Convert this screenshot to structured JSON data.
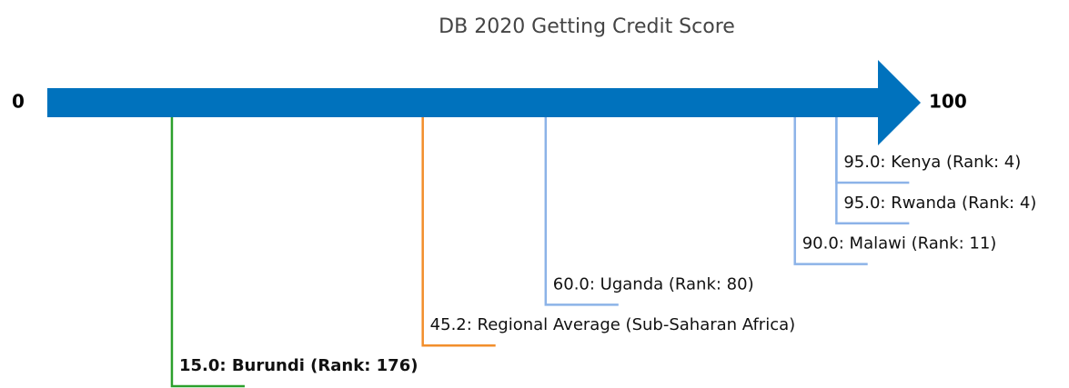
{
  "chart_data": {
    "type": "numberline",
    "title": "DB 2020 Getting Credit Score",
    "xlim": [
      0,
      100
    ],
    "xticks": [
      0,
      100
    ],
    "axis_color": "#0072bd",
    "points": [
      {
        "label": "15.0: Burundi (Rank: 176)",
        "value": 15,
        "color": "#2ca02c",
        "bold": true
      },
      {
        "label": "45.2: Regional Average (Sub-Saharan Africa)",
        "value": 45.2,
        "color": "#f28e2b",
        "bold": false
      },
      {
        "label": "60.0: Uganda (Rank: 80)",
        "value": 60,
        "color": "#8cb3e8",
        "bold": false
      },
      {
        "label": "90.0: Malawi (Rank: 11)",
        "value": 90,
        "color": "#8cb3e8",
        "bold": false
      },
      {
        "label": "95.0: Rwanda (Rank: 4)",
        "value": 95,
        "color": "#8cb3e8",
        "bold": false
      },
      {
        "label": "95.0: Kenya (Rank: 4)",
        "value": 95,
        "color": "#8cb3e8",
        "bold": false
      }
    ]
  }
}
